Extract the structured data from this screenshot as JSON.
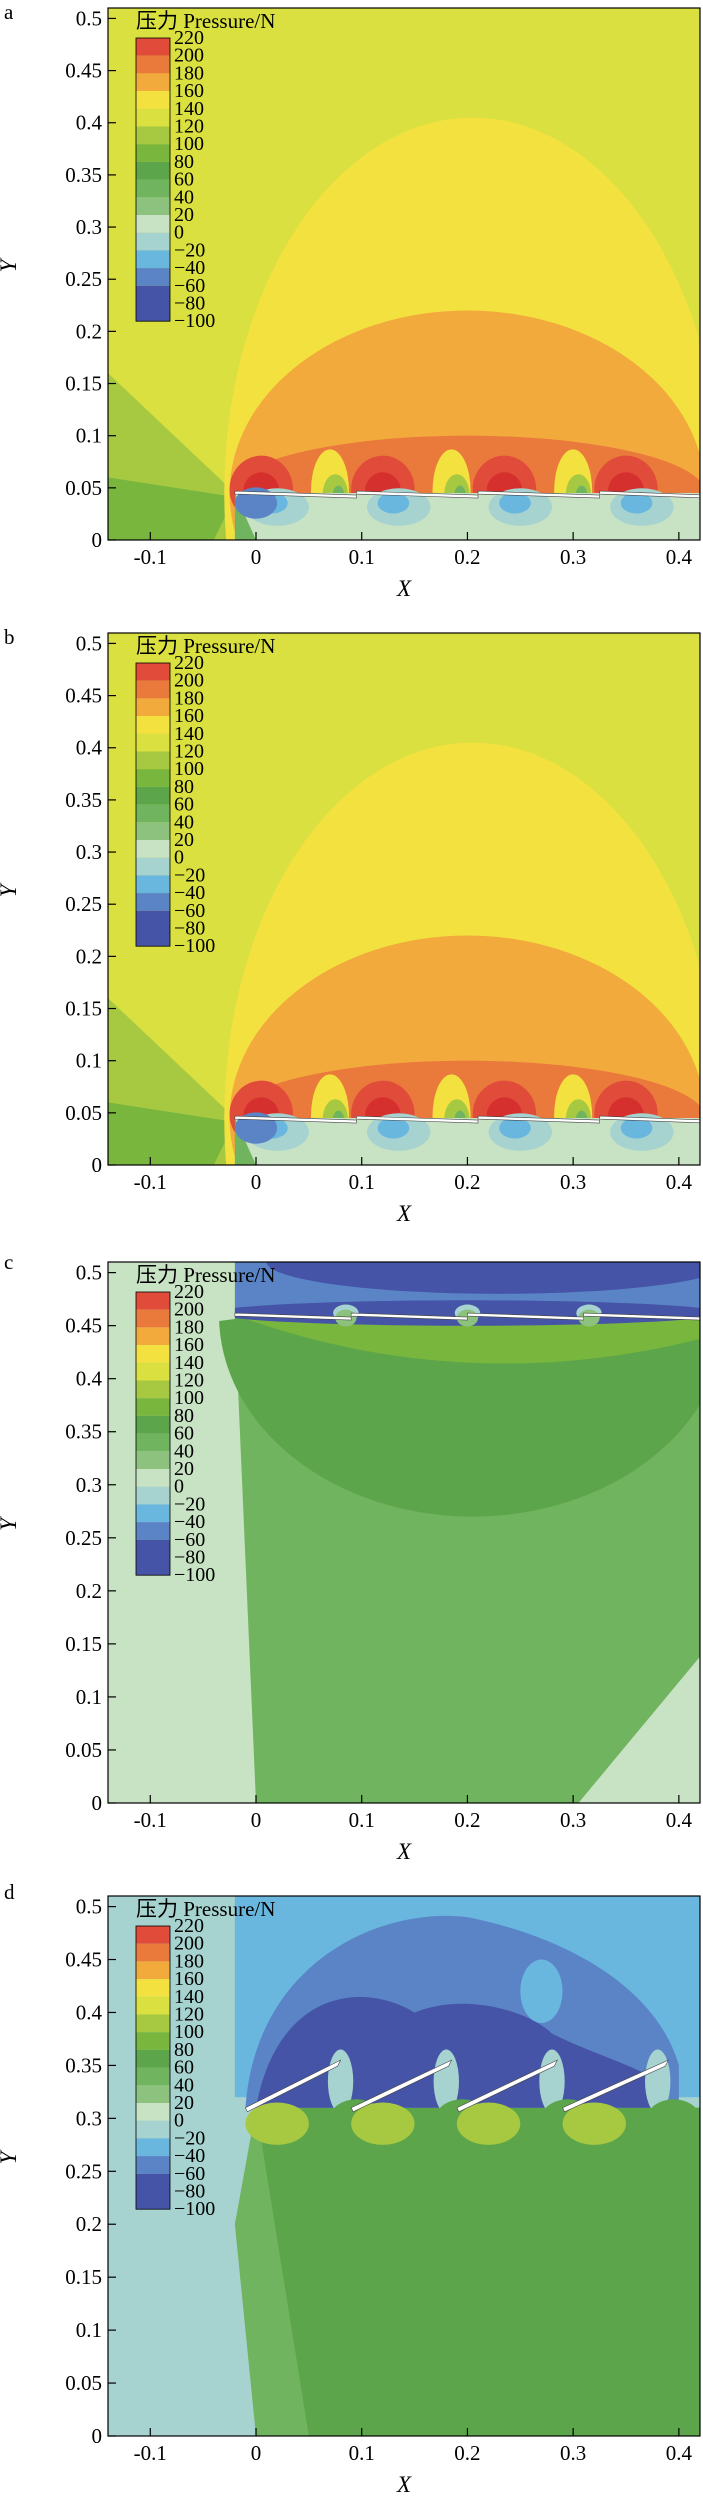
{
  "panels": [
    {
      "letter": "a"
    },
    {
      "letter": "b"
    },
    {
      "letter": "c"
    },
    {
      "letter": "d"
    }
  ],
  "colors": {
    "scale": [
      "#4554a6",
      "#5a84c6",
      "#69b6df",
      "#a6d3d0",
      "#c8e2c4",
      "#8cc27e",
      "#71b45f",
      "#5da54a",
      "#79b63d",
      "#a7c942",
      "#d9e040",
      "#f3e13f",
      "#f3aa3c",
      "#ea7a3c",
      "#e14b3a"
    ],
    "foil": "#ffffff",
    "axis": "#000000"
  },
  "chart_data": [
    {
      "type": "heatmap",
      "panel": "a",
      "title": "",
      "xlabel": "X",
      "ylabel": "Y",
      "xlim": [
        -0.14,
        0.42
      ],
      "ylim": [
        0,
        0.51
      ],
      "xticks": [
        "-0.1",
        "0",
        "0.1",
        "0.2",
        "0.3",
        "0.4"
      ],
      "yticks": [
        "0",
        "0.05",
        "0.1",
        "0.15",
        "0.2",
        "0.25",
        "0.3",
        "0.35",
        "0.4",
        "0.45",
        "0.5"
      ],
      "legend": {
        "title": "压力 Pressure/N",
        "levels": [
          "220",
          "200",
          "180",
          "160",
          "140",
          "120",
          "100",
          "80",
          "60",
          "40",
          "20",
          "0",
          "-20",
          "-40",
          "-60",
          "-80",
          "-100"
        ]
      },
      "foils": [
        {
          "x0": -0.02,
          "x1": 0.095,
          "y": 0.045
        },
        {
          "x0": 0.095,
          "x1": 0.21,
          "y": 0.045
        },
        {
          "x0": 0.21,
          "x1": 0.325,
          "y": 0.045
        },
        {
          "x0": 0.325,
          "x1": 0.425,
          "y": 0.045
        }
      ]
    },
    {
      "type": "heatmap",
      "panel": "b",
      "title": "",
      "xlabel": "X",
      "ylabel": "Y",
      "xlim": [
        -0.14,
        0.42
      ],
      "ylim": [
        0,
        0.51
      ],
      "xticks": [
        "-0.1",
        "0",
        "0.1",
        "0.2",
        "0.3",
        "0.4"
      ],
      "yticks": [
        "0",
        "0.05",
        "0.1",
        "0.15",
        "0.2",
        "0.25",
        "0.3",
        "0.35",
        "0.4",
        "0.45",
        "0.5"
      ],
      "legend": {
        "title": "压力 Pressure/N",
        "levels": [
          "220",
          "200",
          "180",
          "160",
          "140",
          "120",
          "100",
          "80",
          "60",
          "40",
          "20",
          "0",
          "-20",
          "-40",
          "-60",
          "-80",
          "-100"
        ]
      },
      "foils": [
        {
          "x0": -0.02,
          "x1": 0.095,
          "y": 0.045
        },
        {
          "x0": 0.095,
          "x1": 0.21,
          "y": 0.045
        },
        {
          "x0": 0.21,
          "x1": 0.325,
          "y": 0.045
        },
        {
          "x0": 0.325,
          "x1": 0.425,
          "y": 0.045
        }
      ]
    },
    {
      "type": "heatmap",
      "panel": "c",
      "title": "",
      "xlabel": "X",
      "ylabel": "Y",
      "xlim": [
        -0.14,
        0.42
      ],
      "ylim": [
        0,
        0.51
      ],
      "xticks": [
        "-0.1",
        "0",
        "0.1",
        "0.2",
        "0.3",
        "0.4"
      ],
      "yticks": [
        "0",
        "0.05",
        "0.1",
        "0.15",
        "0.2",
        "0.25",
        "0.3",
        "0.35",
        "0.4",
        "0.45",
        "0.5"
      ],
      "legend": {
        "title": "压力 Pressure/N",
        "levels": [
          "220",
          "200",
          "180",
          "160",
          "140",
          "120",
          "100",
          "80",
          "60",
          "40",
          "20",
          "0",
          "-20",
          "-40",
          "-60",
          "-80",
          "-100"
        ]
      },
      "foils": [
        {
          "x0": -0.02,
          "x1": 0.09,
          "y": 0.46
        },
        {
          "x0": 0.09,
          "x1": 0.2,
          "y": 0.46
        },
        {
          "x0": 0.2,
          "x1": 0.31,
          "y": 0.46
        },
        {
          "x0": 0.31,
          "x1": 0.42,
          "y": 0.46
        }
      ]
    },
    {
      "type": "heatmap",
      "panel": "d",
      "title": "",
      "xlabel": "X",
      "ylabel": "Y",
      "xlim": [
        -0.14,
        0.42
      ],
      "ylim": [
        0,
        0.51
      ],
      "xticks": [
        "-0.1",
        "0",
        "0.1",
        "0.2",
        "0.3",
        "0.4"
      ],
      "yticks": [
        "0",
        "0.05",
        "0.1",
        "0.15",
        "0.2",
        "0.25",
        "0.3",
        "0.35",
        "0.4",
        "0.45",
        "0.5"
      ],
      "legend": {
        "title": "压力 Pressure/N",
        "levels": [
          "220",
          "200",
          "180",
          "160",
          "140",
          "120",
          "100",
          "80",
          "60",
          "40",
          "20",
          "0",
          "-20",
          "-40",
          "-60",
          "-80",
          "-100"
        ]
      },
      "foils": [
        {
          "x0": -0.01,
          "x1": 0.08,
          "y0": 0.31,
          "y1": 0.355
        },
        {
          "x0": 0.09,
          "x1": 0.185,
          "y0": 0.31,
          "y1": 0.355
        },
        {
          "x0": 0.19,
          "x1": 0.285,
          "y0": 0.31,
          "y1": 0.355
        },
        {
          "x0": 0.29,
          "x1": 0.39,
          "y0": 0.31,
          "y1": 0.355
        }
      ]
    }
  ]
}
